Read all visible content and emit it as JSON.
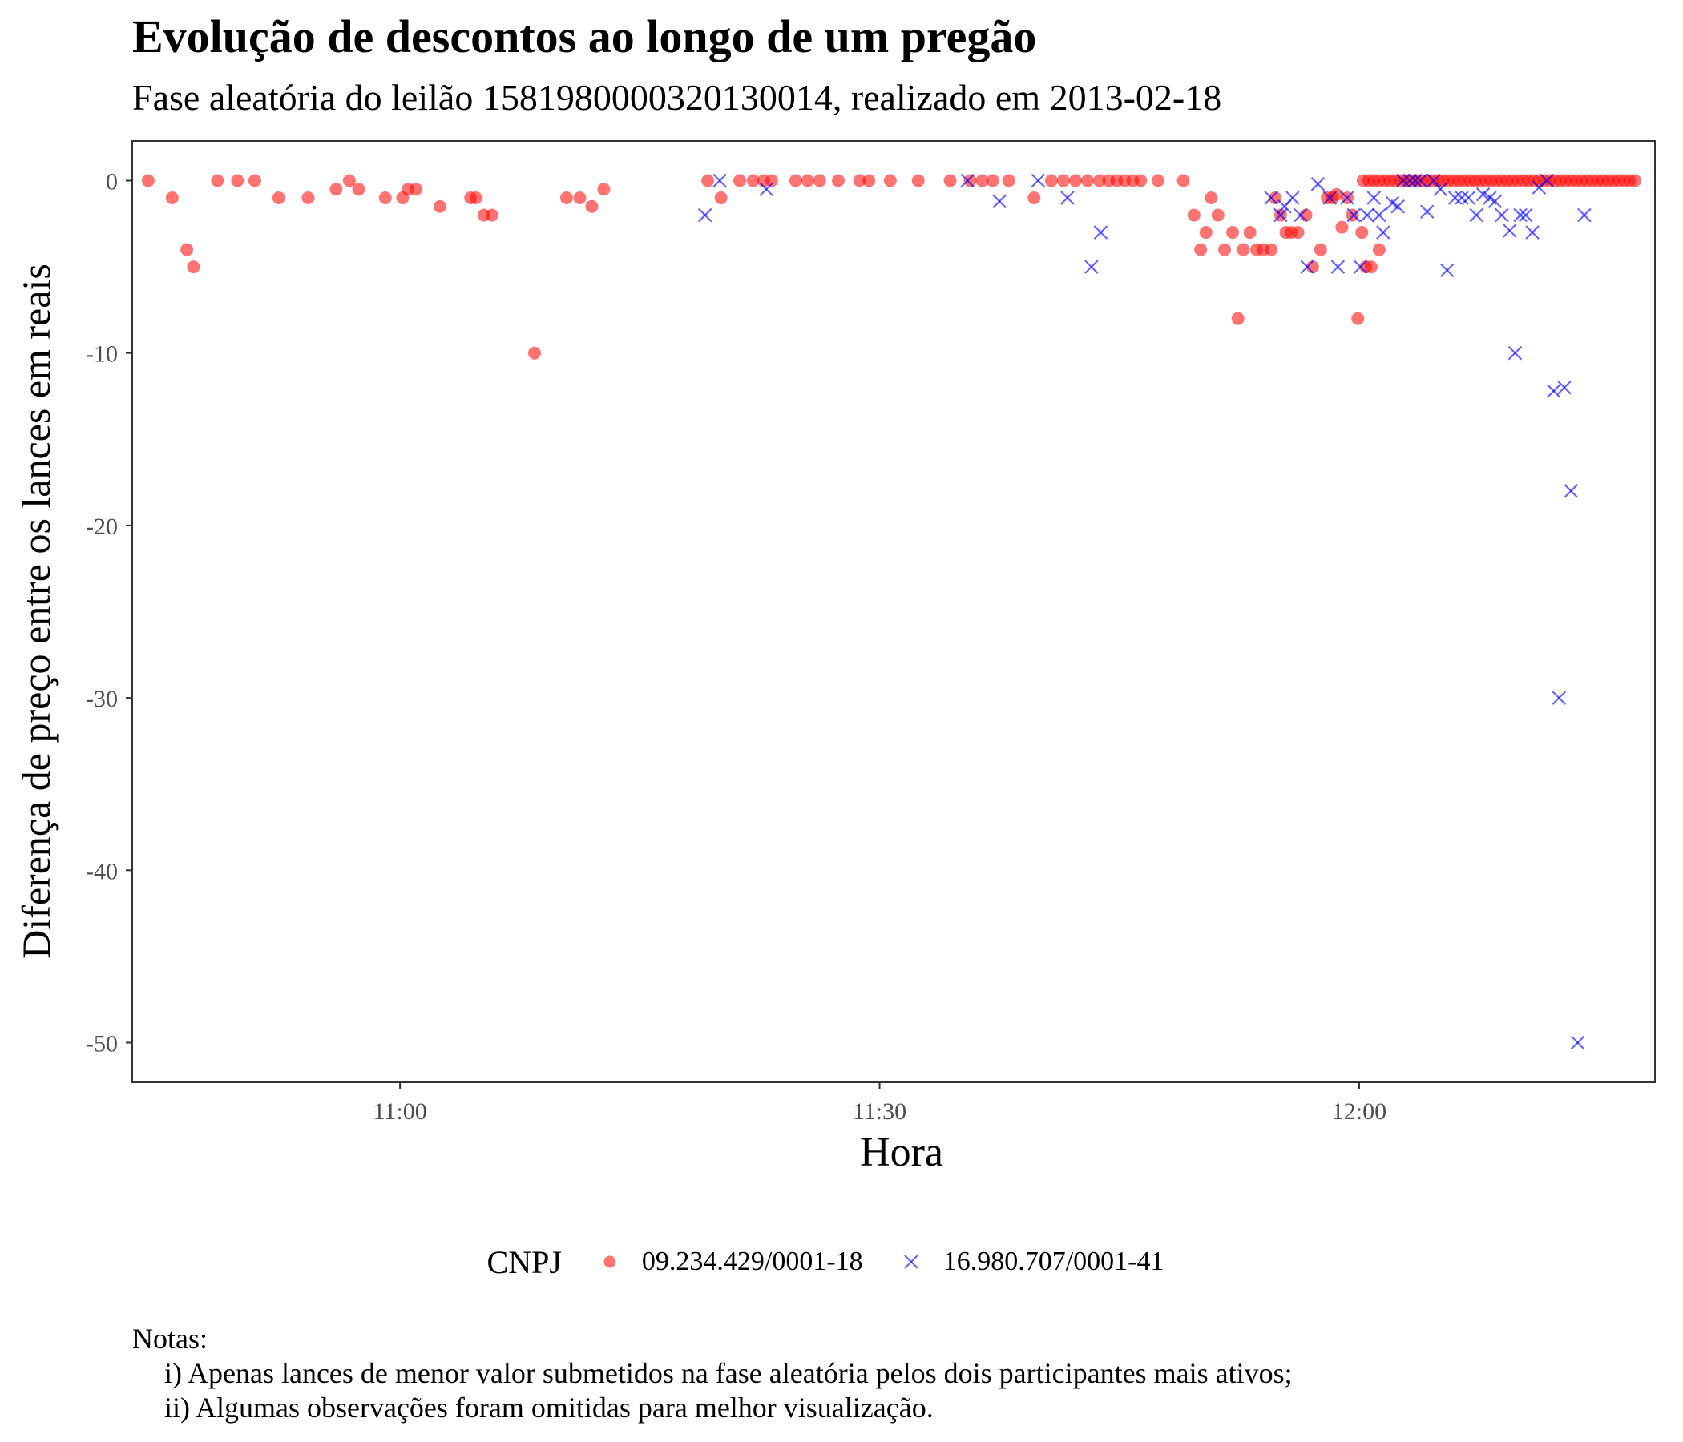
{
  "title": "Evolução de descontos ao longo de um pregão",
  "subtitle": "Fase aleatória do leilão 1581980000320130014, realizado em 2013-02-18",
  "legend": {
    "title": "CNPJ",
    "items": [
      {
        "label": "09.234.429/0001-18",
        "color": "#ff0000",
        "shape": "circle"
      },
      {
        "label": "16.980.707/0001-41",
        "color": "#0000ff",
        "shape": "cross"
      }
    ]
  },
  "notes": {
    "heading": "Notas:",
    "lines": [
      "i) Apenas lances de menor valor submetidos na fase aleatória pelos dois participantes mais ativos;",
      "ii) Algumas observações foram omitidas para melhor visualização."
    ]
  },
  "chart_data": {
    "type": "scatter",
    "xlabel": "Hora",
    "ylabel": "Diferença de preço entre os lances em reais",
    "x_unit": "clock time (HH:MM)",
    "xlim": [
      "10:43:15",
      "12:18:30"
    ],
    "ylim": [
      -52.3,
      2.3
    ],
    "xticks": [
      {
        "value": "11:00",
        "label": "11:00"
      },
      {
        "value": "11:30",
        "label": "11:30"
      },
      {
        "value": "12:00",
        "label": "12:00"
      }
    ],
    "yticks": [
      0,
      -10,
      -20,
      -30,
      -40,
      -50
    ],
    "grid": false,
    "legend_position": "bottom",
    "series": [
      {
        "name": "09.234.429/0001-18",
        "color": "#ff0000",
        "marker": "circle",
        "points": [
          [
            "10:44:15",
            0
          ],
          [
            "10:45:45",
            -1
          ],
          [
            "10:46:40",
            -4
          ],
          [
            "10:47:05",
            -5
          ],
          [
            "10:48:35",
            0
          ],
          [
            "10:49:50",
            0
          ],
          [
            "10:50:55",
            0
          ],
          [
            "10:52:25",
            -1
          ],
          [
            "10:54:15",
            -1
          ],
          [
            "10:56:00",
            -0.5
          ],
          [
            "10:56:50",
            0
          ],
          [
            "10:57:25",
            -0.5
          ],
          [
            "10:59:05",
            -1
          ],
          [
            "11:00:10",
            -1
          ],
          [
            "11:00:30",
            -0.5
          ],
          [
            "11:01:00",
            -0.5
          ],
          [
            "11:02:30",
            -1.5
          ],
          [
            "11:04:25",
            -1
          ],
          [
            "11:04:45",
            -1
          ],
          [
            "11:05:15",
            -2
          ],
          [
            "11:05:45",
            -2
          ],
          [
            "11:08:25",
            -10
          ],
          [
            "11:10:25",
            -1
          ],
          [
            "11:11:15",
            -1
          ],
          [
            "11:12:00",
            -1.5
          ],
          [
            "11:12:45",
            -0.5
          ],
          [
            "11:19:15",
            0
          ],
          [
            "11:20:05",
            -1
          ],
          [
            "11:21:15",
            0
          ],
          [
            "11:22:05",
            0
          ],
          [
            "11:22:45",
            0
          ],
          [
            "11:23:15",
            0
          ],
          [
            "11:24:45",
            0
          ],
          [
            "11:25:30",
            0
          ],
          [
            "11:26:15",
            0
          ],
          [
            "11:27:25",
            0
          ],
          [
            "11:28:45",
            0
          ],
          [
            "11:29:20",
            0
          ],
          [
            "11:30:40",
            0
          ],
          [
            "11:32:25",
            0
          ],
          [
            "11:34:25",
            0
          ],
          [
            "11:35:40",
            0
          ],
          [
            "11:36:25",
            0
          ],
          [
            "11:37:05",
            0
          ],
          [
            "11:38:05",
            0
          ],
          [
            "11:39:40",
            -1
          ],
          [
            "11:40:45",
            0
          ],
          [
            "11:41:30",
            0
          ],
          [
            "11:42:15",
            0
          ],
          [
            "11:43:00",
            0
          ],
          [
            "11:43:45",
            0
          ],
          [
            "11:44:20",
            0
          ],
          [
            "11:44:50",
            0
          ],
          [
            "11:45:20",
            0
          ],
          [
            "11:45:50",
            0
          ],
          [
            "11:46:20",
            0
          ],
          [
            "11:47:25",
            0
          ],
          [
            "11:49:00",
            0
          ],
          [
            "11:49:40",
            -2
          ],
          [
            "11:50:05",
            -4
          ],
          [
            "11:50:25",
            -3
          ],
          [
            "11:50:45",
            -1
          ],
          [
            "11:51:10",
            -2
          ],
          [
            "11:51:35",
            -4
          ],
          [
            "11:52:05",
            -3
          ],
          [
            "11:52:25",
            -8
          ],
          [
            "11:52:45",
            -4
          ],
          [
            "11:53:10",
            -3
          ],
          [
            "11:53:35",
            -4
          ],
          [
            "11:54:00",
            -4
          ],
          [
            "11:54:30",
            -4
          ],
          [
            "11:54:45",
            -1
          ],
          [
            "11:55:05",
            -2
          ],
          [
            "11:55:25",
            -3
          ],
          [
            "11:55:45",
            -3
          ],
          [
            "11:56:10",
            -3
          ],
          [
            "11:56:40",
            -2
          ],
          [
            "11:57:05",
            -5
          ],
          [
            "11:57:35",
            -4
          ],
          [
            "11:58:00",
            -1
          ],
          [
            "11:58:20",
            -1
          ],
          [
            "11:58:35",
            -0.8
          ],
          [
            "11:58:55",
            -2.7
          ],
          [
            "11:59:15",
            -1
          ],
          [
            "11:59:35",
            -2
          ],
          [
            "11:59:55",
            -8
          ],
          [
            "12:00:10",
            -3
          ],
          [
            "12:00:25",
            -5
          ],
          [
            "12:00:45",
            -5
          ],
          [
            "12:01:15",
            -4
          ],
          [
            "12:00:15",
            0
          ],
          [
            "12:00:35",
            0
          ],
          [
            "12:00:55",
            0
          ],
          [
            "12:01:15",
            0
          ],
          [
            "12:01:35",
            0
          ],
          [
            "12:01:55",
            0
          ],
          [
            "12:02:15",
            0
          ],
          [
            "12:02:35",
            0
          ],
          [
            "12:02:55",
            0
          ],
          [
            "12:03:15",
            0
          ],
          [
            "12:03:35",
            0
          ],
          [
            "12:03:55",
            0
          ],
          [
            "12:04:15",
            0
          ],
          [
            "12:04:35",
            0
          ],
          [
            "12:04:55",
            0
          ],
          [
            "12:05:15",
            0
          ],
          [
            "12:05:35",
            0
          ],
          [
            "12:05:55",
            0
          ],
          [
            "12:06:15",
            0
          ],
          [
            "12:06:35",
            0
          ],
          [
            "12:06:55",
            0
          ],
          [
            "12:07:15",
            0
          ],
          [
            "12:07:35",
            0
          ],
          [
            "12:07:55",
            0
          ],
          [
            "12:08:15",
            0
          ],
          [
            "12:08:35",
            0
          ],
          [
            "12:08:55",
            0
          ],
          [
            "12:09:15",
            0
          ],
          [
            "12:09:35",
            0
          ],
          [
            "12:09:55",
            0
          ],
          [
            "12:10:15",
            0
          ],
          [
            "12:10:35",
            0
          ],
          [
            "12:10:55",
            0
          ],
          [
            "12:11:15",
            0
          ],
          [
            "12:11:35",
            0
          ],
          [
            "12:11:55",
            0
          ],
          [
            "12:12:15",
            0
          ],
          [
            "12:12:35",
            0
          ],
          [
            "12:12:55",
            0
          ],
          [
            "12:13:15",
            0
          ],
          [
            "12:13:35",
            0
          ],
          [
            "12:13:55",
            0
          ],
          [
            "12:14:15",
            0
          ],
          [
            "12:14:35",
            0
          ],
          [
            "12:14:55",
            0
          ],
          [
            "12:15:15",
            0
          ],
          [
            "12:15:35",
            0
          ],
          [
            "12:15:55",
            0
          ],
          [
            "12:16:15",
            0
          ],
          [
            "12:16:35",
            0
          ],
          [
            "12:16:55",
            0
          ],
          [
            "12:17:15",
            0
          ]
        ]
      },
      {
        "name": "16.980.707/0001-41",
        "color": "#0000ff",
        "marker": "cross",
        "points": [
          [
            "11:19:05",
            -2
          ],
          [
            "11:20:00",
            0
          ],
          [
            "11:22:55",
            -0.5
          ],
          [
            "11:35:30",
            0
          ],
          [
            "11:37:30",
            -1.2
          ],
          [
            "11:39:55",
            0
          ],
          [
            "11:41:45",
            -1
          ],
          [
            "11:43:15",
            -5
          ],
          [
            "11:43:50",
            -3
          ],
          [
            "11:54:30",
            -1
          ],
          [
            "11:55:05",
            -2
          ],
          [
            "11:55:20",
            -1.5
          ],
          [
            "11:55:50",
            -1
          ],
          [
            "11:56:20",
            -2
          ],
          [
            "11:56:45",
            -5
          ],
          [
            "11:57:25",
            -0.2
          ],
          [
            "11:58:10",
            -1
          ],
          [
            "11:58:40",
            -5
          ],
          [
            "11:59:15",
            -1
          ],
          [
            "11:59:40",
            -2
          ],
          [
            "12:00:05",
            -5
          ],
          [
            "12:00:30",
            -2
          ],
          [
            "12:00:55",
            -1
          ],
          [
            "12:01:15",
            -2
          ],
          [
            "12:01:30",
            -3
          ],
          [
            "12:02:05",
            -1.3
          ],
          [
            "12:02:25",
            -1.5
          ],
          [
            "12:02:45",
            0
          ],
          [
            "12:03:10",
            0
          ],
          [
            "12:03:30",
            0
          ],
          [
            "12:03:50",
            0
          ],
          [
            "12:04:15",
            -1.8
          ],
          [
            "12:04:40",
            0
          ],
          [
            "12:05:05",
            -0.5
          ],
          [
            "12:05:30",
            -5.2
          ],
          [
            "12:06:00",
            -1
          ],
          [
            "12:06:25",
            -1
          ],
          [
            "12:06:50",
            -1
          ],
          [
            "12:07:20",
            -2
          ],
          [
            "12:07:45",
            -0.8
          ],
          [
            "12:08:10",
            -1
          ],
          [
            "12:08:30",
            -1.2
          ],
          [
            "12:08:55",
            -2
          ],
          [
            "12:09:25",
            -2.9
          ],
          [
            "12:09:45",
            -10
          ],
          [
            "12:10:05",
            -2
          ],
          [
            "12:10:25",
            -2
          ],
          [
            "12:10:50",
            -3
          ],
          [
            "12:11:15",
            -0.4
          ],
          [
            "12:11:45",
            0
          ],
          [
            "12:12:10",
            -12.2
          ],
          [
            "12:12:30",
            -30
          ],
          [
            "12:12:50",
            -12
          ],
          [
            "12:13:15",
            -18
          ],
          [
            "12:13:40",
            -50
          ],
          [
            "12:14:05",
            -2
          ]
        ]
      }
    ]
  }
}
